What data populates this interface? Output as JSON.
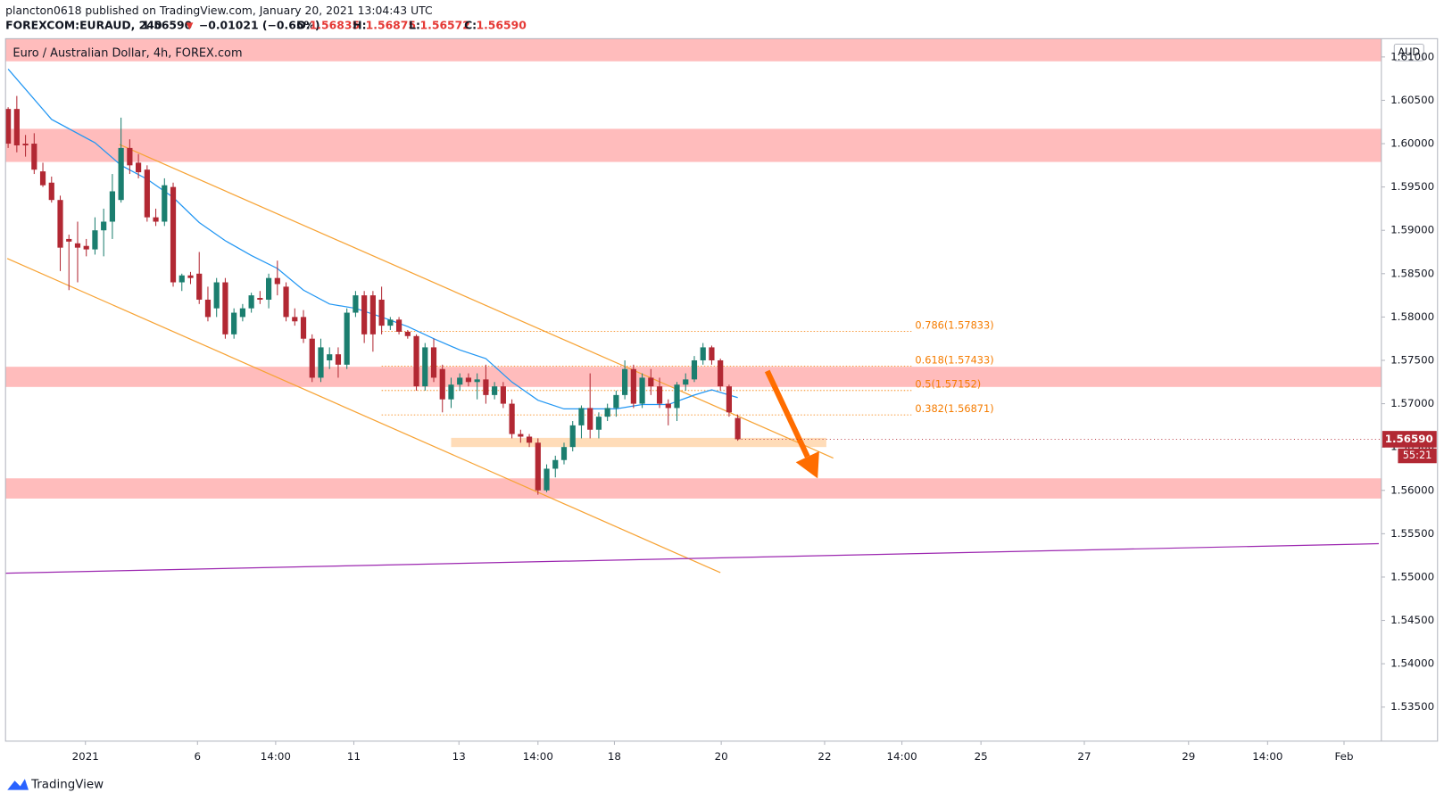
{
  "header": {
    "line1": "plancton0618 published on TradingView.com, January 20, 2021 13:04:43 UTC",
    "symbol": "FOREXCOM:EURAUD, 240",
    "last": "1.56590",
    "arrow": "▼",
    "change": "−0.01021 (−0.65%)",
    "o_label": "O:",
    "o": "1.56835",
    "h_label": "H:",
    "h": "1.56875",
    "l_label": "L:",
    "l": "1.56572",
    "c_label": "C:",
    "c": "1.56590"
  },
  "chart_data": {
    "type": "candlestick",
    "title": "Euro / Australian Dollar, 4h, FOREX.com",
    "currency": "AUD",
    "up_color": "#1b7e6f",
    "down_color": "#b22833",
    "x": [
      0,
      1,
      2,
      3,
      4,
      5,
      6,
      7,
      8,
      9,
      10,
      11,
      12,
      13,
      14,
      15,
      16,
      17,
      18,
      19,
      20,
      21,
      22,
      23,
      24,
      25,
      26,
      27,
      28,
      29,
      30,
      31,
      32,
      33,
      34,
      35,
      36,
      37,
      38,
      39,
      40,
      41,
      42,
      43,
      44,
      45,
      46,
      47,
      48,
      49,
      50,
      51,
      52,
      53,
      54,
      55,
      56,
      57,
      58,
      59,
      60,
      61,
      62,
      63,
      64,
      65,
      66,
      67,
      68,
      69,
      70,
      71,
      72,
      73,
      74,
      75,
      76,
      77,
      78,
      79,
      80,
      81,
      82,
      83,
      84
    ],
    "open": [
      1.604,
      1.604,
      1.6,
      1.6,
      1.5968,
      1.5955,
      1.5935,
      1.589,
      1.5885,
      1.5882,
      1.5878,
      1.59,
      1.591,
      1.5935,
      1.5995,
      1.5978,
      1.597,
      1.5915,
      1.591,
      1.595,
      1.584,
      1.5848,
      1.585,
      1.582,
      1.581,
      1.584,
      1.578,
      1.58,
      1.581,
      1.5822,
      1.582,
      1.5845,
      1.5835,
      1.58,
      1.58,
      1.5775,
      1.573,
      1.575,
      1.5757,
      1.5745,
      1.5805,
      1.5825,
      1.5825,
      1.582,
      1.579,
      1.5797,
      1.5783,
      1.5778,
      1.572,
      1.5765,
      1.574,
      1.5705,
      1.5722,
      1.573,
      1.5725,
      1.5728,
      1.571,
      1.572,
      1.57,
      1.5665,
      1.5662,
      1.5655,
      1.56,
      1.5625,
      1.5635,
      1.565,
      1.5675,
      1.5695,
      1.567,
      1.5685,
      1.5695,
      1.571,
      1.574,
      1.57,
      1.573,
      1.572,
      1.57,
      1.5695,
      1.5722,
      1.5728,
      1.575,
      1.5765,
      1.575,
      1.572,
      1.56835
    ],
    "high": [
      1.6042,
      1.6055,
      1.601,
      1.6012,
      1.5978,
      1.5962,
      1.594,
      1.5895,
      1.591,
      1.589,
      1.5915,
      1.5925,
      1.5965,
      1.603,
      1.6005,
      1.5988,
      1.5975,
      1.5925,
      1.596,
      1.5955,
      1.585,
      1.5852,
      1.5875,
      1.5835,
      1.5845,
      1.5845,
      1.581,
      1.5815,
      1.5828,
      1.583,
      1.585,
      1.5865,
      1.584,
      1.581,
      1.5808,
      1.578,
      1.5775,
      1.5765,
      1.5765,
      1.581,
      1.583,
      1.583,
      1.583,
      1.5835,
      1.58,
      1.58,
      1.5785,
      1.578,
      1.577,
      1.5775,
      1.5745,
      1.573,
      1.5735,
      1.5735,
      1.5735,
      1.5745,
      1.5725,
      1.5725,
      1.5705,
      1.567,
      1.5665,
      1.566,
      1.563,
      1.564,
      1.5655,
      1.568,
      1.5698,
      1.5735,
      1.569,
      1.57,
      1.5715,
      1.575,
      1.5745,
      1.5735,
      1.574,
      1.573,
      1.5705,
      1.5725,
      1.5735,
      1.5755,
      1.577,
      1.5767,
      1.5752,
      1.5722,
      1.56875
    ],
    "low": [
      1.5995,
      1.599,
      1.5985,
      1.5965,
      1.595,
      1.5932,
      1.5853,
      1.5831,
      1.584,
      1.587,
      1.5872,
      1.587,
      1.589,
      1.5932,
      1.5965,
      1.596,
      1.591,
      1.5905,
      1.5905,
      1.5835,
      1.583,
      1.5838,
      1.5815,
      1.5795,
      1.58,
      1.5775,
      1.5775,
      1.5795,
      1.5805,
      1.5815,
      1.581,
      1.5825,
      1.5795,
      1.579,
      1.577,
      1.5725,
      1.5725,
      1.574,
      1.573,
      1.574,
      1.58,
      1.577,
      1.576,
      1.578,
      1.5785,
      1.578,
      1.5775,
      1.5715,
      1.5715,
      1.5725,
      1.569,
      1.5695,
      1.5715,
      1.572,
      1.5705,
      1.57,
      1.5705,
      1.5695,
      1.566,
      1.5655,
      1.565,
      1.5595,
      1.5598,
      1.5615,
      1.563,
      1.5645,
      1.566,
      1.566,
      1.566,
      1.568,
      1.5685,
      1.5705,
      1.5695,
      1.5695,
      1.571,
      1.5695,
      1.5675,
      1.568,
      1.5715,
      1.5725,
      1.5745,
      1.5745,
      1.5715,
      1.5685,
      1.56572
    ],
    "close": [
      1.6,
      1.5998,
      1.5998,
      1.597,
      1.5952,
      1.5935,
      1.588,
      1.5887,
      1.588,
      1.5878,
      1.59,
      1.591,
      1.5945,
      1.5995,
      1.5975,
      1.5967,
      1.5915,
      1.591,
      1.5952,
      1.584,
      1.5848,
      1.5845,
      1.582,
      1.58,
      1.584,
      1.578,
      1.5805,
      1.581,
      1.5825,
      1.582,
      1.5845,
      1.5838,
      1.58,
      1.5795,
      1.5775,
      1.573,
      1.5765,
      1.5757,
      1.5745,
      1.5805,
      1.5825,
      1.578,
      1.578,
      1.579,
      1.5797,
      1.5783,
      1.5778,
      1.572,
      1.5765,
      1.573,
      1.5705,
      1.5722,
      1.573,
      1.5725,
      1.5728,
      1.571,
      1.572,
      1.57,
      1.5665,
      1.5662,
      1.5655,
      1.56,
      1.5625,
      1.5635,
      1.565,
      1.5675,
      1.5695,
      1.567,
      1.5685,
      1.5695,
      1.571,
      1.574,
      1.57,
      1.573,
      1.572,
      1.57,
      1.5695,
      1.5722,
      1.5728,
      1.575,
      1.5765,
      1.575,
      1.572,
      1.569,
      1.5659
    ],
    "last_label": "1.56590",
    "countdown": "55:21",
    "ma": {
      "color": "#2196f3",
      "x": [
        0,
        5,
        10,
        13,
        16,
        19,
        22,
        25,
        28,
        31,
        34,
        37,
        40,
        43,
        46,
        49,
        52,
        55,
        58,
        61,
        64,
        67,
        70,
        73,
        76,
        79,
        81,
        84
      ],
      "values": [
        1.6086,
        1.6028,
        1.6001,
        1.5975,
        1.5959,
        1.5938,
        1.5909,
        1.5888,
        1.5871,
        1.5856,
        1.5831,
        1.5815,
        1.581,
        1.58,
        1.5789,
        1.5775,
        1.5762,
        1.5752,
        1.5725,
        1.5704,
        1.5694,
        1.5694,
        1.5694,
        1.5699,
        1.5699,
        1.571,
        1.5716,
        1.5707
      ]
    },
    "zones": [
      {
        "color": "#ffbcbc",
        "y": [
          1.6095,
          1.61211
        ]
      },
      {
        "color": "#ffbcbc",
        "y": [
          1.59789,
          1.60171
        ]
      },
      {
        "color": "#ffbcbc",
        "y": [
          1.57193,
          1.57426
        ]
      },
      {
        "color": "#ffbcbc",
        "y": [
          1.55906,
          1.56139
        ]
      },
      {
        "color": "#ffdcb8",
        "y": [
          1.565,
          1.56606
        ],
        "x": [
          51,
          94.2
        ]
      }
    ],
    "fib": {
      "color": "#f57c00",
      "x": [
        43,
        104
      ],
      "levels": [
        {
          "label": "0.786(1.57833)",
          "value": 1.57833
        },
        {
          "label": "0.618(1.57433)",
          "value": 1.57433
        },
        {
          "label": "0.5(1.57152)",
          "value": 1.57152
        },
        {
          "label": "0.382(1.56871)",
          "value": 1.56871
        }
      ]
    },
    "lines": [
      {
        "color": "#f7a335",
        "x": [
          12.8,
          95
        ],
        "y": [
          1.59991,
          1.56373
        ]
      },
      {
        "color": "#f7a335",
        "x": [
          -0.1,
          82
        ],
        "y": [
          1.58675,
          1.55051
        ]
      },
      {
        "color": "#9c27b0",
        "x": [
          -0.3,
          157.8
        ],
        "y": [
          1.55045,
          1.55385
        ]
      }
    ],
    "arrow": {
      "color": "#ff6d00",
      "x": [
        87.4,
        93.2
      ],
      "y": [
        1.57377,
        1.56138
      ]
    },
    "xlim": [
      -0.3,
      158.1
    ],
    "ylim": [
      1.53107,
      1.61211
    ],
    "xticks": [
      {
        "value": 8.9,
        "label": "2021"
      },
      {
        "value": 21.8,
        "label": "6"
      },
      {
        "value": 30.8,
        "label": "14:00"
      },
      {
        "value": 39.8,
        "label": "11"
      },
      {
        "value": 51.9,
        "label": "13"
      },
      {
        "value": 61,
        "label": "14:00"
      },
      {
        "value": 69.8,
        "label": "18"
      },
      {
        "value": 82.1,
        "label": "20"
      },
      {
        "value": 94,
        "label": "22"
      },
      {
        "value": 102.9,
        "label": "14:00"
      },
      {
        "value": 112,
        "label": "25"
      },
      {
        "value": 123.9,
        "label": "27"
      },
      {
        "value": 135.9,
        "label": "29"
      },
      {
        "value": 145,
        "label": "14:00"
      },
      {
        "value": 153.8,
        "label": "Feb"
      }
    ],
    "yticks": [
      {
        "value": 1.535,
        "label": "1.53500"
      },
      {
        "value": 1.54,
        "label": "1.54000"
      },
      {
        "value": 1.545,
        "label": "1.54500"
      },
      {
        "value": 1.55,
        "label": "1.55000"
      },
      {
        "value": 1.555,
        "label": "1.55500"
      },
      {
        "value": 1.56,
        "label": "1.56000"
      },
      {
        "value": 1.565,
        "label": "1.56500"
      },
      {
        "value": 1.57,
        "label": "1.57000"
      },
      {
        "value": 1.575,
        "label": "1.57500"
      },
      {
        "value": 1.58,
        "label": "1.58000"
      },
      {
        "value": 1.585,
        "label": "1.58500"
      },
      {
        "value": 1.59,
        "label": "1.59000"
      },
      {
        "value": 1.595,
        "label": "1.59500"
      },
      {
        "value": 1.6,
        "label": "1.60000"
      },
      {
        "value": 1.605,
        "label": "1.60500"
      },
      {
        "value": 1.61,
        "label": "1.61000"
      }
    ]
  },
  "footer": {
    "brand": "TradingView"
  }
}
